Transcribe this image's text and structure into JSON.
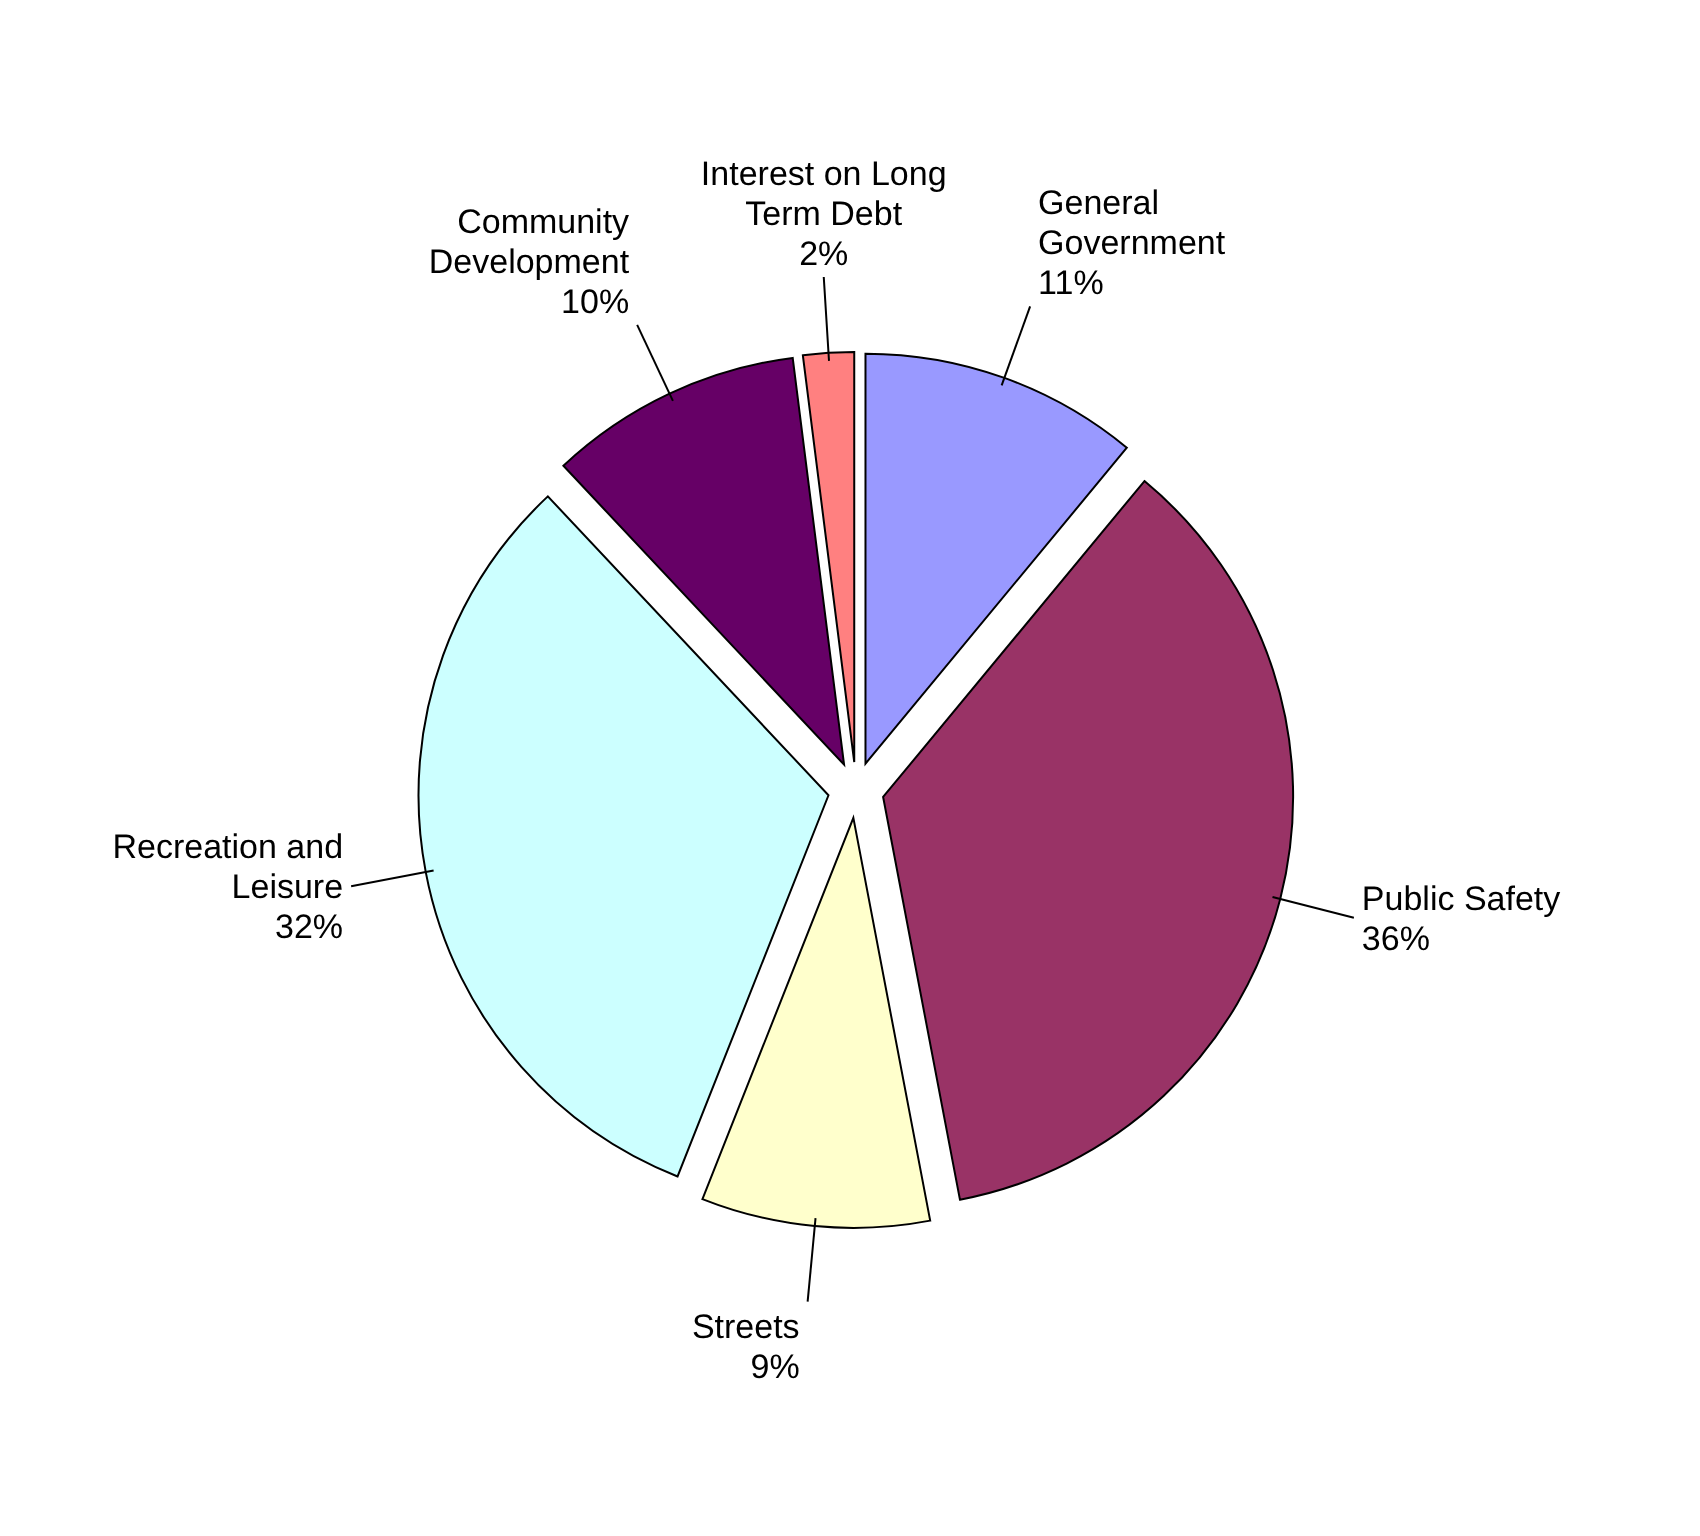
{
  "chart_data": {
    "type": "pie",
    "categories": [
      "General Government",
      "Public Safety",
      "Streets",
      "Recreation and Leisure",
      "Community Development",
      "Interest on Long Term Debt"
    ],
    "values": [
      11,
      36,
      9,
      32,
      10,
      2
    ],
    "value_labels": [
      "11%",
      "36%",
      "9%",
      "32%",
      "10%",
      "2%"
    ],
    "colors": [
      "#9999ff",
      "#993366",
      "#ffffcc",
      "#ccffff",
      "#660066",
      "#ff8080"
    ],
    "legend": false
  }
}
